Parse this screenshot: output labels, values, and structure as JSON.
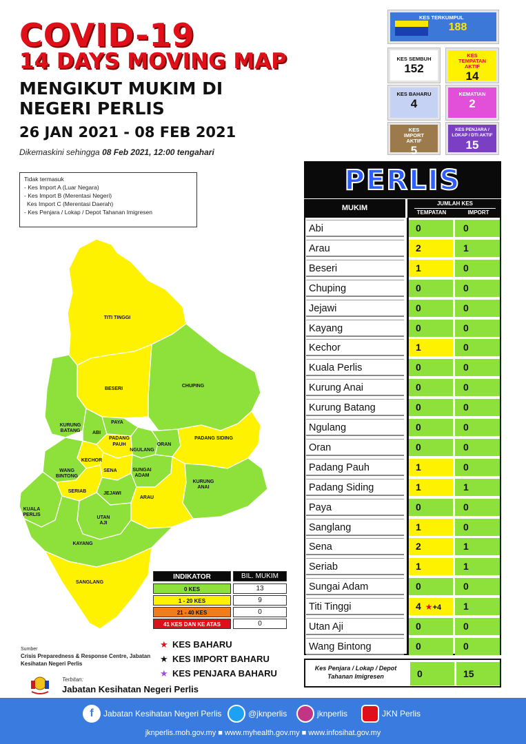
{
  "header": {
    "title": "COVID-19",
    "subtitle": "14 DAYS MOVING MAP",
    "heading": "MENGIKUT MUKIM DI NEGERI PERLIS",
    "date_range": "26 JAN 2021 - 08 FEB 2021",
    "updated_prefix": "Dikemaskini sehingga ",
    "updated_value": "08 Feb 2021, 12:00 tengahari"
  },
  "exclusions": [
    "Tidak termasuk",
    "- Kes Import A (Luar Negara)",
    "- Kes Import B (Merentasi Negeri)",
    "  Kes Import C (Merentasi Daerah)",
    "- Kes Penjara / Lokap / Depot Tahanan Imigresen"
  ],
  "summary": {
    "terkumpul": {
      "label": "KES TERKUMPUL",
      "value": "188"
    },
    "sembuh": {
      "label": "KES SEMBUH",
      "value": "152"
    },
    "tempatan_aktif": {
      "label": "KES TEMPATAN AKTIF",
      "value": "14"
    },
    "baharu": {
      "label": "KES BAHARU",
      "value": "4"
    },
    "kematian": {
      "label": "KEMATIAN",
      "value": "2"
    },
    "import_aktif": {
      "label": "KES IMPORT AKTIF",
      "value": "5"
    },
    "penjara": {
      "label": "KES PENJARA / LOKAP / DTI AKTIF",
      "value": "15"
    }
  },
  "table": {
    "state": "PERLIS",
    "col_mukim": "MUKIM",
    "col_jumlah": "JUMLAH KES",
    "col_tempatan": "TEMPATAN",
    "col_import": "IMPORT",
    "rows": [
      {
        "name": "Abi",
        "tempatan": "0",
        "import": "0"
      },
      {
        "name": "Arau",
        "tempatan": "2",
        "import": "1"
      },
      {
        "name": "Beseri",
        "tempatan": "1",
        "import": "0"
      },
      {
        "name": "Chuping",
        "tempatan": "0",
        "import": "0"
      },
      {
        "name": "Jejawi",
        "tempatan": "0",
        "import": "0"
      },
      {
        "name": "Kayang",
        "tempatan": "0",
        "import": "0"
      },
      {
        "name": "Kechor",
        "tempatan": "1",
        "import": "0"
      },
      {
        "name": "Kuala Perlis",
        "tempatan": "0",
        "import": "0"
      },
      {
        "name": "Kurung Anai",
        "tempatan": "0",
        "import": "0"
      },
      {
        "name": "Kurung Batang",
        "tempatan": "0",
        "import": "0"
      },
      {
        "name": "Ngulang",
        "tempatan": "0",
        "import": "0"
      },
      {
        "name": "Oran",
        "tempatan": "0",
        "import": "0"
      },
      {
        "name": "Padang Pauh",
        "tempatan": "1",
        "import": "0"
      },
      {
        "name": "Padang Siding",
        "tempatan": "1",
        "import": "1"
      },
      {
        "name": "Paya",
        "tempatan": "0",
        "import": "0"
      },
      {
        "name": "Sanglang",
        "tempatan": "1",
        "import": "0"
      },
      {
        "name": "Sena",
        "tempatan": "2",
        "import": "1"
      },
      {
        "name": "Seriab",
        "tempatan": "1",
        "import": "1"
      },
      {
        "name": "Sungai Adam",
        "tempatan": "0",
        "import": "0"
      },
      {
        "name": "Titi Tinggi",
        "tempatan": "4",
        "extra": "+4",
        "import": "1"
      },
      {
        "name": "Utan Aji",
        "tempatan": "0",
        "import": "0"
      },
      {
        "name": "Wang Bintong",
        "tempatan": "0",
        "import": "0"
      }
    ],
    "penjara_row": {
      "name": "Kes Penjara / Lokap / Depot Tahanan Imigresen",
      "tempatan": "0",
      "import": "15"
    }
  },
  "map_labels": {
    "titi_tinggi": "TITI TINGGI",
    "beseri": "BESERI",
    "chuping": "CHUPING",
    "kurung_batang_1": "KURUNG",
    "kurung_batang_2": "BATANG",
    "abi": "ABI",
    "paya": "PAYA",
    "padang_pauh_1": "PADANG",
    "padang_pauh_2": "PAUH",
    "ngulang": "NGULANG",
    "oran": "ORAN",
    "padang_siding": "PADANG SIDING",
    "kechor": "KECHOR",
    "wang_bintong_1": "WANG",
    "wang_bintong_2": "BINTONG",
    "sena": "SENA",
    "sungai_adam_1": "SUNGAI",
    "sungai_adam_2": "ADAM",
    "kurung_anai_1": "KURUNG",
    "kurung_anai_2": "ANAI",
    "seriab": "SERIAB",
    "jejawi": "JEJAWI",
    "arau": "ARAU",
    "kuala_perlis_1": "KUALA",
    "kuala_perlis_2": "PERLIS",
    "utan_aji_1": "UTAN",
    "utan_aji_2": "AJI",
    "kayang": "KAYANG",
    "sanglang": "SANGLANG"
  },
  "legend": {
    "head_a": "INDIKATOR",
    "head_b": "BIL. MUKIM",
    "rows": [
      {
        "label": "0 KES",
        "count": "13",
        "color": "#8ee13a"
      },
      {
        "label": "1 - 20 KES",
        "count": "9",
        "color": "#fff200"
      },
      {
        "label": "21 - 40 KES",
        "count": "0",
        "color": "#f07c1a"
      },
      {
        "label": "41 KES DAN KE ATAS",
        "count": "0",
        "color": "#e0101a"
      }
    ]
  },
  "keys": {
    "baharu": "KES BAHARU",
    "import_baharu": "KES IMPORT BAHARU",
    "penjara_baharu": "KES PENJARA BAHARU"
  },
  "source": {
    "label": "Sumber",
    "text": "Crisis Preparedness & Response Centre, Jabatan Kesihatan Negeri Perlis"
  },
  "publisher": {
    "label": "Terbitan:",
    "name": "Jabatan Kesihatan Negeri Perlis"
  },
  "footer": {
    "facebook": "Jabatan Kesihatan Negeri Perlis",
    "twitter": "@jknperlis",
    "instagram": "jknperlis",
    "youtube": "JKN Perlis",
    "urls": "jknperlis.moh.gov.my ■ www.myhealth.gov.my ■ www.infosihat.gov.my"
  },
  "colors": {
    "green": "#8ee13a",
    "yellow": "#fff200",
    "red": "#e0101a",
    "footer_blue": "#3a7be0"
  }
}
